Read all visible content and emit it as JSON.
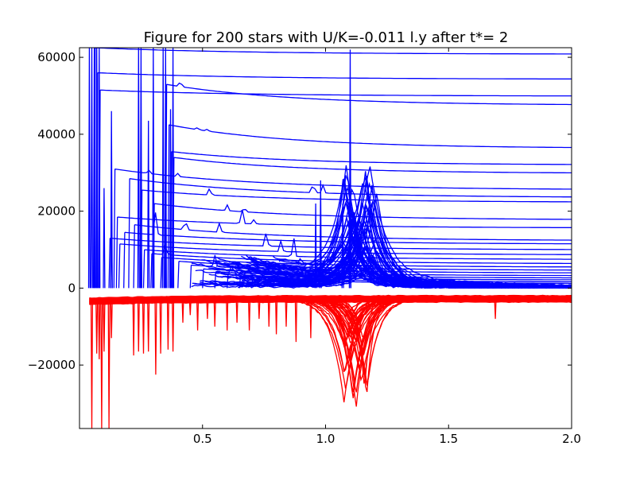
{
  "chart_data": {
    "type": "line",
    "title": "Figure for 200 stars with U/K=-0.011 l.y after t*= 2",
    "xlabel": "",
    "ylabel": "",
    "xlim": [
      0.0,
      2.0
    ],
    "ylim": [
      -36500,
      62500
    ],
    "grid": false,
    "legend": "none",
    "colors": {
      "positive": "#0000ff",
      "negative": "#ff0000",
      "axes": "#000000"
    },
    "x_ticks": [
      {
        "value": 0.5,
        "label": "0.5"
      },
      {
        "value": 1.0,
        "label": "1.0"
      },
      {
        "value": 1.5,
        "label": "1.5"
      },
      {
        "value": 2.0,
        "label": "2.0"
      }
    ],
    "y_ticks": [
      {
        "value": 60000,
        "label": "60000"
      },
      {
        "value": 40000,
        "label": "40000"
      },
      {
        "value": 20000,
        "label": "20000"
      },
      {
        "value": 0,
        "label": "0"
      },
      {
        "value": -20000,
        "label": "−20000"
      }
    ],
    "upper_curves": [
      {
        "t0": 0.06,
        "start": 62500,
        "end": 60800,
        "spikes": []
      },
      {
        "t0": 0.07,
        "start": 56000,
        "end": 54300,
        "spikes": []
      },
      {
        "t0": 0.08,
        "start": 51500,
        "end": 49900,
        "spikes": []
      },
      {
        "t0": 0.35,
        "start": 53000,
        "end": 47500,
        "spikes": [
          [
            0.41,
            1500
          ]
        ]
      },
      {
        "t0": 0.36,
        "start": 42500,
        "end": 36300,
        "spikes": [
          [
            0.48,
            600
          ],
          [
            0.52,
            500
          ]
        ]
      },
      {
        "t0": 0.37,
        "start": 35500,
        "end": 32000,
        "spikes": []
      },
      {
        "t0": 0.38,
        "start": 34000,
        "end": 29800,
        "spikes": []
      },
      {
        "t0": 0.14,
        "start": 31000,
        "end": 25500,
        "spikes": [
          [
            0.28,
            1000
          ],
          [
            0.4,
            800
          ]
        ]
      },
      {
        "t0": 0.2,
        "start": 28500,
        "end": 23500,
        "spikes": [
          [
            0.95,
            3000
          ],
          [
            0.99,
            2000
          ]
        ]
      },
      {
        "t0": 0.25,
        "start": 25500,
        "end": 22300,
        "spikes": [
          [
            0.53,
            2000
          ]
        ]
      },
      {
        "t0": 0.3,
        "start": 22000,
        "end": 17700,
        "spikes": [
          [
            0.6,
            1500
          ],
          [
            0.67,
            1200
          ]
        ]
      },
      {
        "t0": 0.15,
        "start": 18500,
        "end": 15600,
        "spikes": [
          [
            0.66,
            3800
          ],
          [
            0.71,
            1200
          ]
        ]
      },
      {
        "t0": 0.22,
        "start": 16500,
        "end": 12300,
        "spikes": [
          [
            0.43,
            3000
          ],
          [
            0.57,
            2500
          ]
        ]
      },
      {
        "t0": 0.18,
        "start": 14500,
        "end": 11400,
        "spikes": [
          [
            0.31,
            6000
          ]
        ]
      },
      {
        "t0": 0.12,
        "start": 13000,
        "end": 9900,
        "spikes": [
          [
            0.76,
            4000
          ]
        ]
      },
      {
        "t0": 0.16,
        "start": 11500,
        "end": 8600,
        "spikes": [
          [
            0.82,
            3000
          ]
        ]
      },
      {
        "t0": 0.26,
        "start": 10000,
        "end": 7400,
        "spikes": [
          [
            0.87,
            5000
          ]
        ]
      },
      {
        "t0": 0.29,
        "start": 9000,
        "end": 6300,
        "spikes": [
          [
            0.35,
            3000
          ]
        ]
      },
      {
        "t0": 0.33,
        "start": 8000,
        "end": 5400,
        "spikes": [
          [
            0.9,
            2000
          ]
        ]
      },
      {
        "t0": 0.4,
        "start": 7000,
        "end": 4600,
        "spikes": []
      },
      {
        "t0": 0.45,
        "start": 6000,
        "end": 3900,
        "spikes": [
          [
            0.55,
            3000
          ]
        ]
      },
      {
        "t0": 0.5,
        "start": 5000,
        "end": 3200,
        "spikes": []
      },
      {
        "t0": 0.55,
        "start": 4300,
        "end": 2600,
        "spikes": [
          [
            0.62,
            2000
          ]
        ]
      },
      {
        "t0": 0.6,
        "start": 3600,
        "end": 2100,
        "spikes": []
      },
      {
        "t0": 0.65,
        "start": 3000,
        "end": 1600,
        "spikes": []
      },
      {
        "t0": 0.7,
        "start": 2400,
        "end": 1200,
        "spikes": []
      }
    ],
    "vertical_spikes": [
      {
        "x": 0.04,
        "top": 62500
      },
      {
        "x": 0.05,
        "top": 62500
      },
      {
        "x": 0.06,
        "top": 62500
      },
      {
        "x": 0.07,
        "top": 62500
      },
      {
        "x": 0.08,
        "top": 62500
      },
      {
        "x": 0.1,
        "top": 26000
      },
      {
        "x": 0.13,
        "top": 46000
      },
      {
        "x": 0.13,
        "top": 20000
      },
      {
        "x": 0.24,
        "top": 62500
      },
      {
        "x": 0.25,
        "top": 62500
      },
      {
        "x": 0.28,
        "top": 43500
      },
      {
        "x": 0.3,
        "top": 62500
      },
      {
        "x": 0.34,
        "top": 62500
      },
      {
        "x": 0.35,
        "top": 62500
      },
      {
        "x": 0.38,
        "top": 62500
      },
      {
        "x": 0.37,
        "top": 46500
      },
      {
        "x": 1.1,
        "top": 62000
      },
      {
        "x": 1.1,
        "top": 35000
      },
      {
        "x": 1.07,
        "top": 22000
      },
      {
        "x": 0.96,
        "top": 22000
      },
      {
        "x": 0.98,
        "top": 28000
      }
    ],
    "upper_cluster": {
      "center": 1.14,
      "peak": 30000,
      "width": 0.05,
      "count": 60
    },
    "lower_band": {
      "top": -2000,
      "bottom": -3600,
      "count": 40
    },
    "lower_cluster": {
      "center": 1.12,
      "depth": -29500,
      "width": 0.04,
      "count": 40
    },
    "negative_spikes": [
      {
        "x": 0.05,
        "depth": -36500
      },
      {
        "x": 0.07,
        "depth": -17000
      },
      {
        "x": 0.08,
        "depth": -18500
      },
      {
        "x": 0.09,
        "depth": -36500
      },
      {
        "x": 0.1,
        "depth": -16500
      },
      {
        "x": 0.12,
        "depth": -36500
      },
      {
        "x": 0.13,
        "depth": -13000
      },
      {
        "x": 0.22,
        "depth": -17500
      },
      {
        "x": 0.24,
        "depth": -16500
      },
      {
        "x": 0.26,
        "depth": -17000
      },
      {
        "x": 0.28,
        "depth": -16500
      },
      {
        "x": 0.31,
        "depth": -22500
      },
      {
        "x": 0.33,
        "depth": -17000
      },
      {
        "x": 0.36,
        "depth": -16000
      },
      {
        "x": 0.38,
        "depth": -16500
      },
      {
        "x": 0.42,
        "depth": -9000
      },
      {
        "x": 0.45,
        "depth": -7000
      },
      {
        "x": 0.48,
        "depth": -11000
      },
      {
        "x": 0.52,
        "depth": -8000
      },
      {
        "x": 0.55,
        "depth": -10000
      },
      {
        "x": 0.6,
        "depth": -11000
      },
      {
        "x": 0.64,
        "depth": -9000
      },
      {
        "x": 0.69,
        "depth": -11000
      },
      {
        "x": 0.73,
        "depth": -8000
      },
      {
        "x": 0.77,
        "depth": -10000
      },
      {
        "x": 0.8,
        "depth": -12000
      },
      {
        "x": 0.84,
        "depth": -10000
      },
      {
        "x": 0.88,
        "depth": -14000
      },
      {
        "x": 0.94,
        "depth": -13000
      },
      {
        "x": 1.69,
        "depth": -8000
      }
    ]
  }
}
